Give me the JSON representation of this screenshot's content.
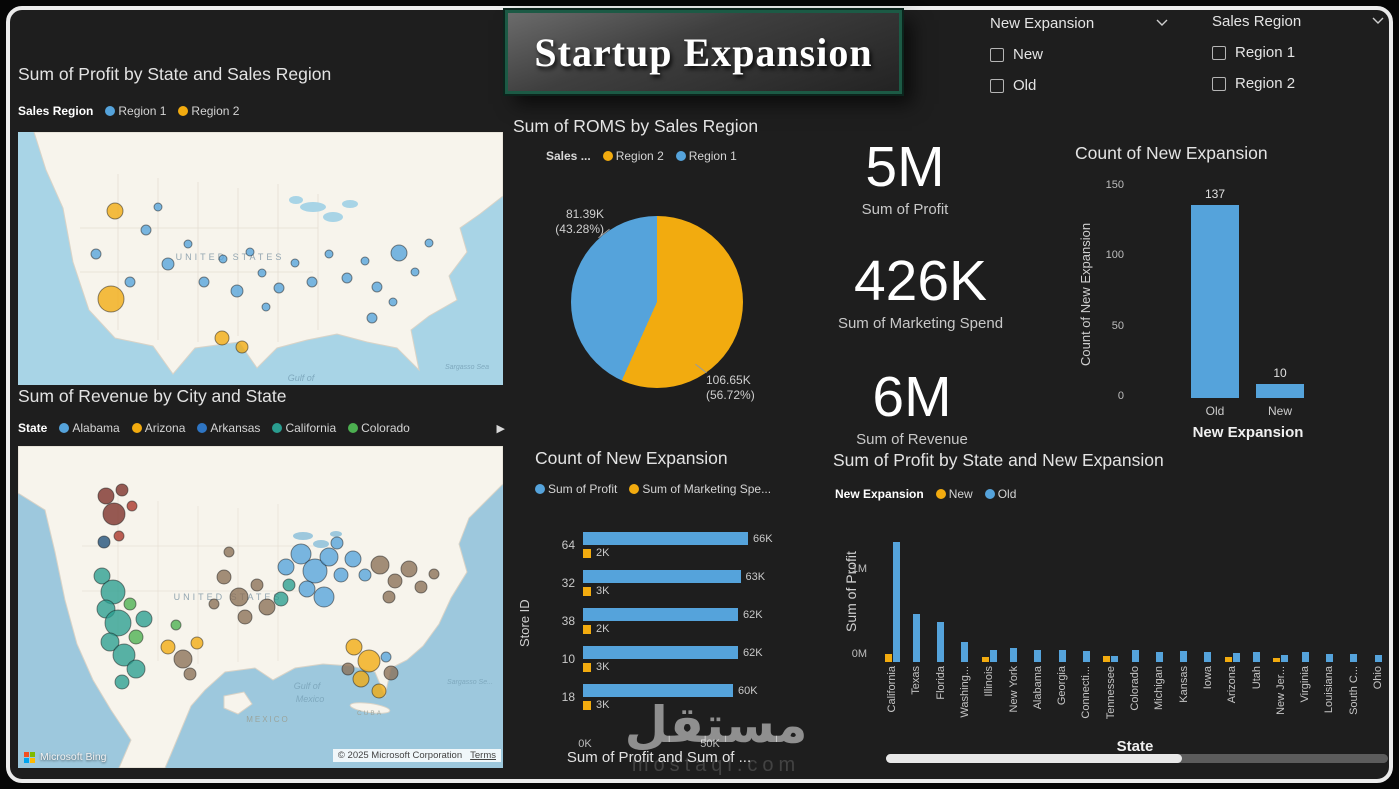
{
  "header": {
    "title": "Startup Expansion"
  },
  "slicers": [
    {
      "label": "New Expansion",
      "options": [
        "New",
        "Old"
      ]
    },
    {
      "label": "Sales Region",
      "options": [
        "Region 1",
        "Region 2"
      ]
    }
  ],
  "colors": {
    "blue": "#55A3DB",
    "orange": "#F2AB0F",
    "background": "#1e1e1e",
    "banner_border": "#1c5a45"
  },
  "kpis": [
    {
      "value": "5M",
      "label": "Sum of Profit"
    },
    {
      "value": "426K",
      "label": "Sum of Marketing Spend"
    },
    {
      "value": "6M",
      "label": "Sum of Revenue"
    }
  ],
  "profit_map": {
    "title": "Sum of Profit by State and Sales Region",
    "legend_title": "Sales Region",
    "legend": [
      {
        "label": "Region 1",
        "color": "#55A3DB"
      },
      {
        "label": "Region 2",
        "color": "#F2AB0F"
      }
    ],
    "labels": {
      "country": "UNITED STATES",
      "gulf": "Gulf of",
      "sea": "Sargasso Sea"
    },
    "bubbles": [
      {
        "x": 97,
        "y": 79,
        "r": 8,
        "c": "#F2AB0F"
      },
      {
        "x": 93,
        "y": 167,
        "r": 13,
        "c": "#F2AB0F"
      },
      {
        "x": 140,
        "y": 75,
        "r": 4,
        "c": "#55A3DB"
      },
      {
        "x": 78,
        "y": 122,
        "r": 5,
        "c": "#55A3DB"
      },
      {
        "x": 112,
        "y": 150,
        "r": 5,
        "c": "#55A3DB"
      },
      {
        "x": 128,
        "y": 98,
        "r": 5,
        "c": "#55A3DB"
      },
      {
        "x": 150,
        "y": 132,
        "r": 6,
        "c": "#55A3DB"
      },
      {
        "x": 170,
        "y": 112,
        "r": 4,
        "c": "#55A3DB"
      },
      {
        "x": 186,
        "y": 150,
        "r": 5,
        "c": "#55A3DB"
      },
      {
        "x": 205,
        "y": 127,
        "r": 4,
        "c": "#55A3DB"
      },
      {
        "x": 219,
        "y": 159,
        "r": 6,
        "c": "#55A3DB"
      },
      {
        "x": 232,
        "y": 120,
        "r": 4,
        "c": "#55A3DB"
      },
      {
        "x": 244,
        "y": 141,
        "r": 4,
        "c": "#55A3DB"
      },
      {
        "x": 248,
        "y": 175,
        "r": 4,
        "c": "#55A3DB"
      },
      {
        "x": 261,
        "y": 156,
        "r": 5,
        "c": "#55A3DB"
      },
      {
        "x": 277,
        "y": 131,
        "r": 4,
        "c": "#55A3DB"
      },
      {
        "x": 294,
        "y": 150,
        "r": 5,
        "c": "#55A3DB"
      },
      {
        "x": 311,
        "y": 122,
        "r": 4,
        "c": "#55A3DB"
      },
      {
        "x": 329,
        "y": 146,
        "r": 5,
        "c": "#55A3DB"
      },
      {
        "x": 347,
        "y": 129,
        "r": 4,
        "c": "#55A3DB"
      },
      {
        "x": 359,
        "y": 155,
        "r": 5,
        "c": "#55A3DB"
      },
      {
        "x": 375,
        "y": 170,
        "r": 4,
        "c": "#55A3DB"
      },
      {
        "x": 381,
        "y": 121,
        "r": 8,
        "c": "#55A3DB"
      },
      {
        "x": 397,
        "y": 140,
        "r": 4,
        "c": "#55A3DB"
      },
      {
        "x": 411,
        "y": 111,
        "r": 4,
        "c": "#55A3DB"
      },
      {
        "x": 354,
        "y": 186,
        "r": 5,
        "c": "#55A3DB"
      },
      {
        "x": 204,
        "y": 206,
        "r": 7,
        "c": "#F2AB0F"
      },
      {
        "x": 224,
        "y": 215,
        "r": 6,
        "c": "#F2AB0F"
      }
    ]
  },
  "revenue_map": {
    "title": "Sum of Revenue by City and State",
    "legend_title": "State",
    "legend": [
      {
        "label": "Alabama",
        "color": "#55A3DB"
      },
      {
        "label": "Arizona",
        "color": "#F2AB0F"
      },
      {
        "label": "Arkansas",
        "color": "#2E75C3"
      },
      {
        "label": "California",
        "color": "#2A9D8F"
      },
      {
        "label": "Colorado",
        "color": "#4CAF50"
      }
    ],
    "labels": {
      "country": "UNITED STATES",
      "gulf_line1": "Gulf of",
      "gulf_line2": "Mexico",
      "mexico": "MEXICO",
      "cuba": "CUBA",
      "sea": "Sargasso Se..."
    },
    "attribution": "© 2025 Microsoft Corporation",
    "terms": "Terms",
    "bing": "Microsoft Bing",
    "bubbles": [
      {
        "x": 88,
        "y": 50,
        "r": 8,
        "c": "#7B2D26"
      },
      {
        "x": 104,
        "y": 44,
        "r": 6,
        "c": "#7B2D26"
      },
      {
        "x": 96,
        "y": 68,
        "r": 11,
        "c": "#7B2D26"
      },
      {
        "x": 114,
        "y": 60,
        "r": 5,
        "c": "#A93226"
      },
      {
        "x": 86,
        "y": 96,
        "r": 6,
        "c": "#1F4E79"
      },
      {
        "x": 101,
        "y": 90,
        "r": 5,
        "c": "#A93226"
      },
      {
        "x": 84,
        "y": 130,
        "r": 8,
        "c": "#2A9D8F"
      },
      {
        "x": 95,
        "y": 146,
        "r": 12,
        "c": "#2A9D8F"
      },
      {
        "x": 88,
        "y": 163,
        "r": 9,
        "c": "#2A9D8F"
      },
      {
        "x": 100,
        "y": 177,
        "r": 13,
        "c": "#2A9D8F"
      },
      {
        "x": 92,
        "y": 196,
        "r": 9,
        "c": "#2A9D8F"
      },
      {
        "x": 106,
        "y": 209,
        "r": 11,
        "c": "#2A9D8F"
      },
      {
        "x": 118,
        "y": 191,
        "r": 7,
        "c": "#4CAF50"
      },
      {
        "x": 112,
        "y": 158,
        "r": 6,
        "c": "#4CAF50"
      },
      {
        "x": 126,
        "y": 173,
        "r": 8,
        "c": "#2A9D8F"
      },
      {
        "x": 118,
        "y": 223,
        "r": 9,
        "c": "#2A9D8F"
      },
      {
        "x": 104,
        "y": 236,
        "r": 7,
        "c": "#2A9D8F"
      },
      {
        "x": 150,
        "y": 201,
        "r": 7,
        "c": "#F2AB0F"
      },
      {
        "x": 165,
        "y": 213,
        "r": 9,
        "c": "#8A6F56"
      },
      {
        "x": 179,
        "y": 197,
        "r": 6,
        "c": "#F2AB0F"
      },
      {
        "x": 158,
        "y": 179,
        "r": 5,
        "c": "#4CAF50"
      },
      {
        "x": 172,
        "y": 228,
        "r": 6,
        "c": "#8A6F56"
      },
      {
        "x": 206,
        "y": 131,
        "r": 7,
        "c": "#8A6F56"
      },
      {
        "x": 221,
        "y": 151,
        "r": 9,
        "c": "#8A6F56"
      },
      {
        "x": 239,
        "y": 139,
        "r": 6,
        "c": "#8A6F56"
      },
      {
        "x": 227,
        "y": 171,
        "r": 7,
        "c": "#8A6F56"
      },
      {
        "x": 249,
        "y": 161,
        "r": 8,
        "c": "#8A6F56"
      },
      {
        "x": 211,
        "y": 106,
        "r": 5,
        "c": "#8A6F56"
      },
      {
        "x": 196,
        "y": 158,
        "r": 5,
        "c": "#8A6F56"
      },
      {
        "x": 268,
        "y": 121,
        "r": 8,
        "c": "#55A3DB"
      },
      {
        "x": 283,
        "y": 108,
        "r": 10,
        "c": "#55A3DB"
      },
      {
        "x": 297,
        "y": 125,
        "r": 12,
        "c": "#55A3DB"
      },
      {
        "x": 311,
        "y": 111,
        "r": 9,
        "c": "#55A3DB"
      },
      {
        "x": 323,
        "y": 129,
        "r": 7,
        "c": "#55A3DB"
      },
      {
        "x": 289,
        "y": 143,
        "r": 8,
        "c": "#55A3DB"
      },
      {
        "x": 306,
        "y": 151,
        "r": 10,
        "c": "#55A3DB"
      },
      {
        "x": 319,
        "y": 97,
        "r": 6,
        "c": "#55A3DB"
      },
      {
        "x": 335,
        "y": 113,
        "r": 8,
        "c": "#55A3DB"
      },
      {
        "x": 347,
        "y": 129,
        "r": 6,
        "c": "#55A3DB"
      },
      {
        "x": 271,
        "y": 139,
        "r": 6,
        "c": "#2A9D8F"
      },
      {
        "x": 263,
        "y": 153,
        "r": 7,
        "c": "#2A9D8F"
      },
      {
        "x": 362,
        "y": 119,
        "r": 9,
        "c": "#8A6F56"
      },
      {
        "x": 377,
        "y": 135,
        "r": 7,
        "c": "#8A6F56"
      },
      {
        "x": 391,
        "y": 123,
        "r": 8,
        "c": "#8A6F56"
      },
      {
        "x": 403,
        "y": 141,
        "r": 6,
        "c": "#8A6F56"
      },
      {
        "x": 371,
        "y": 151,
        "r": 6,
        "c": "#8A6F56"
      },
      {
        "x": 416,
        "y": 128,
        "r": 5,
        "c": "#8A6F56"
      },
      {
        "x": 336,
        "y": 201,
        "r": 8,
        "c": "#F2AB0F"
      },
      {
        "x": 351,
        "y": 215,
        "r": 11,
        "c": "#F2AB0F"
      },
      {
        "x": 343,
        "y": 233,
        "r": 8,
        "c": "#F2AB0F"
      },
      {
        "x": 361,
        "y": 245,
        "r": 7,
        "c": "#F2AB0F"
      },
      {
        "x": 330,
        "y": 223,
        "r": 6,
        "c": "#8A6F56"
      },
      {
        "x": 373,
        "y": 227,
        "r": 7,
        "c": "#8A6F56"
      },
      {
        "x": 368,
        "y": 211,
        "r": 5,
        "c": "#55A3DB"
      }
    ]
  },
  "chart_data": [
    {
      "id": "roms_pie",
      "type": "pie",
      "title": "Sum of ROMS by Sales Region",
      "legend_title": "Sales ...",
      "legend": [
        {
          "name": "Region 2",
          "color": "#F2AB0F"
        },
        {
          "name": "Region 1",
          "color": "#55A3DB"
        }
      ],
      "slices": [
        {
          "name": "Region 1",
          "value": "81.39K",
          "pct": 43.28,
          "pct_label": "(43.28%)",
          "color": "#55A3DB"
        },
        {
          "name": "Region 2",
          "value": "106.65K",
          "pct": 56.72,
          "pct_label": "(56.72%)",
          "color": "#F2AB0F"
        }
      ]
    },
    {
      "id": "store_bars",
      "type": "bar",
      "orientation": "horizontal",
      "title": "Count of New Expansion",
      "ylabel": "Store ID",
      "xlabel": "Sum of Profit and Sum of ...",
      "xticks": [
        "0K",
        "50K"
      ],
      "categories": [
        "64",
        "32",
        "38",
        "10",
        "18"
      ],
      "series": [
        {
          "name": "Sum of Profit",
          "color": "#55A3DB",
          "values_k": [
            66,
            63,
            62,
            62,
            60
          ],
          "labels": [
            "66K",
            "63K",
            "62K",
            "62K",
            "60K"
          ]
        },
        {
          "name": "Sum of Marketing Spe...",
          "color": "#F2AB0F",
          "values_k": [
            2,
            3,
            2,
            3,
            3
          ],
          "labels": [
            "2K",
            "3K",
            "2K",
            "3K",
            "3K"
          ]
        }
      ]
    },
    {
      "id": "expansion_count",
      "type": "bar",
      "title": "Count of New Expansion",
      "ylabel": "Count of New Expansion",
      "xlabel": "New Expansion",
      "yticks": [
        0,
        50,
        100,
        150
      ],
      "ymax": 150,
      "categories": [
        "Old",
        "New"
      ],
      "values": [
        137,
        10
      ],
      "color": "#55A3DB"
    },
    {
      "id": "state_profit",
      "type": "bar",
      "title": "Sum of Profit by State and New Expansion",
      "legend_title": "New Expansion",
      "ylabel": "Sum of Profit",
      "xlabel": "State",
      "yticks": [
        "0M",
        "1M"
      ],
      "ymax_m": 1.45,
      "categories": [
        "California",
        "Texas",
        "Florida",
        "Washing...",
        "Illinois",
        "New York",
        "Alabama",
        "Georgia",
        "Connecti...",
        "Tennessee",
        "Colorado",
        "Michigan",
        "Kansas",
        "Iowa",
        "Arizona",
        "Utah",
        "New Jer...",
        "Virginia",
        "Louisiana",
        "South C...",
        "Ohio"
      ],
      "series": [
        {
          "name": "New",
          "color": "#F2AB0F",
          "values_m": [
            0.09,
            0,
            0,
            0,
            0.05,
            0,
            0,
            0,
            0,
            0.06,
            0,
            0,
            0,
            0,
            0.05,
            0,
            0.04,
            0,
            0,
            0,
            0
          ]
        },
        {
          "name": "Old",
          "color": "#55A3DB",
          "values_m": [
            1.3,
            0.52,
            0.43,
            0.22,
            0.13,
            0.15,
            0.13,
            0.13,
            0.12,
            0.07,
            0.13,
            0.11,
            0.12,
            0.11,
            0.1,
            0.11,
            0.08,
            0.11,
            0.09,
            0.09,
            0.08
          ]
        }
      ]
    }
  ],
  "watermark": {
    "text": "مستقل",
    "subtext": "mostaql.com"
  },
  "scrollbar": {
    "thumb_ratio": 0.59
  }
}
